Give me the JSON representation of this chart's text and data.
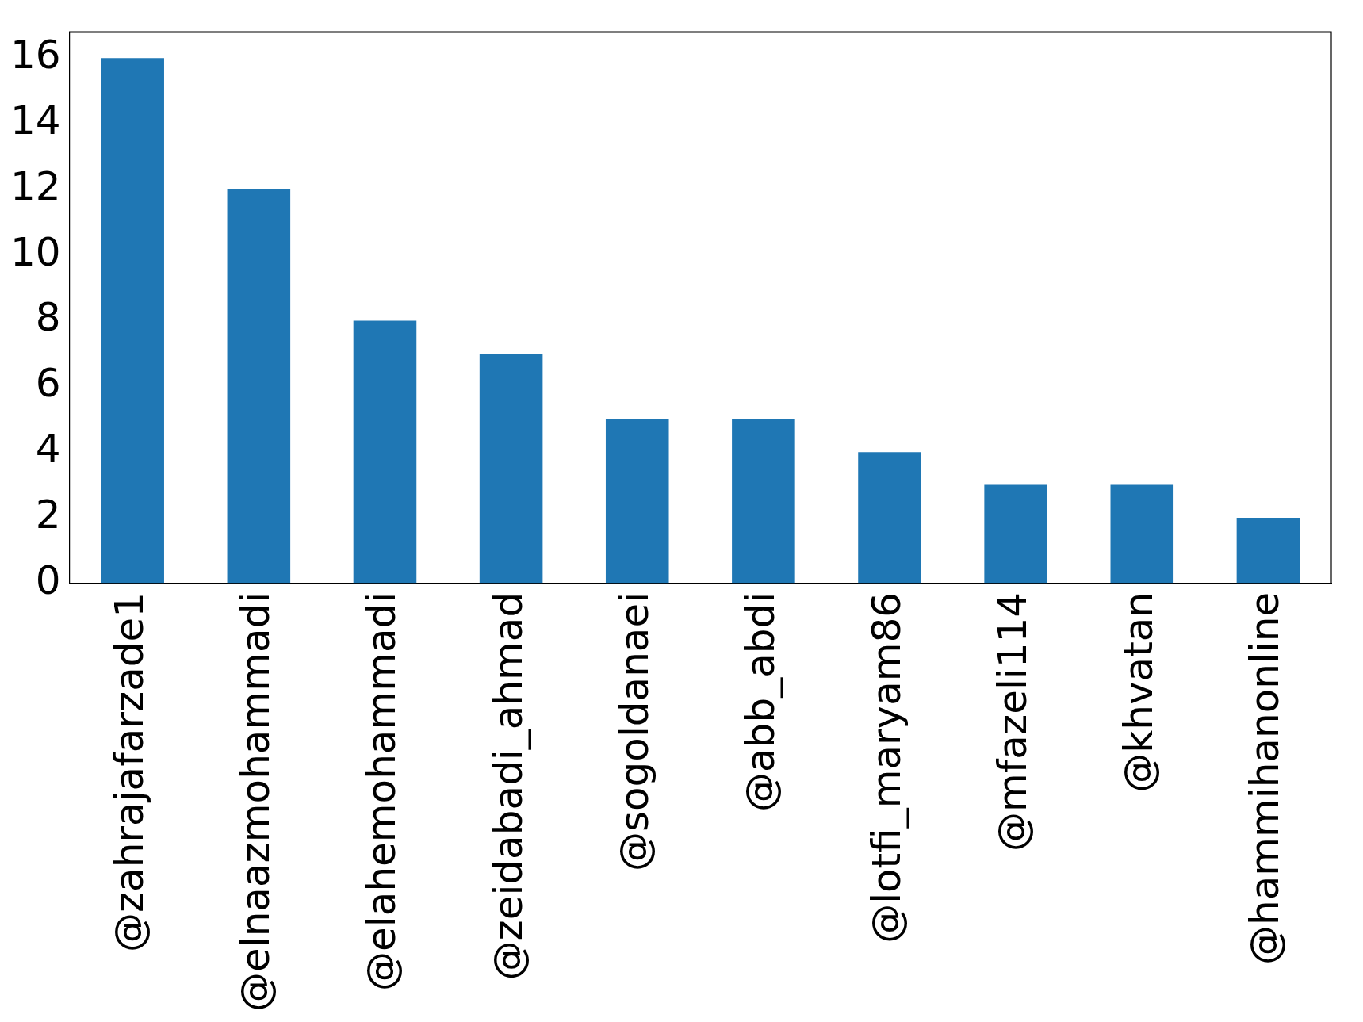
{
  "chart_data": {
    "type": "bar",
    "categories": [
      "@zahrajafarzade1",
      "@elnaazmohammadi",
      "@elahemohammadi",
      "@zeidabadi_ahmad",
      "@sogoldanaei",
      "@abb_abdi",
      "@lotfi_maryam86",
      "@mfazeli114",
      "@khvatan",
      "@hammihanonline"
    ],
    "values": [
      16,
      12,
      8,
      7,
      5,
      5,
      4,
      3,
      3,
      2
    ],
    "color": "#1f77b4",
    "ylim": [
      0,
      16.8
    ],
    "yticks": [
      0,
      2,
      4,
      6,
      8,
      10,
      12,
      14,
      16
    ],
    "grid": false,
    "legend": false
  }
}
